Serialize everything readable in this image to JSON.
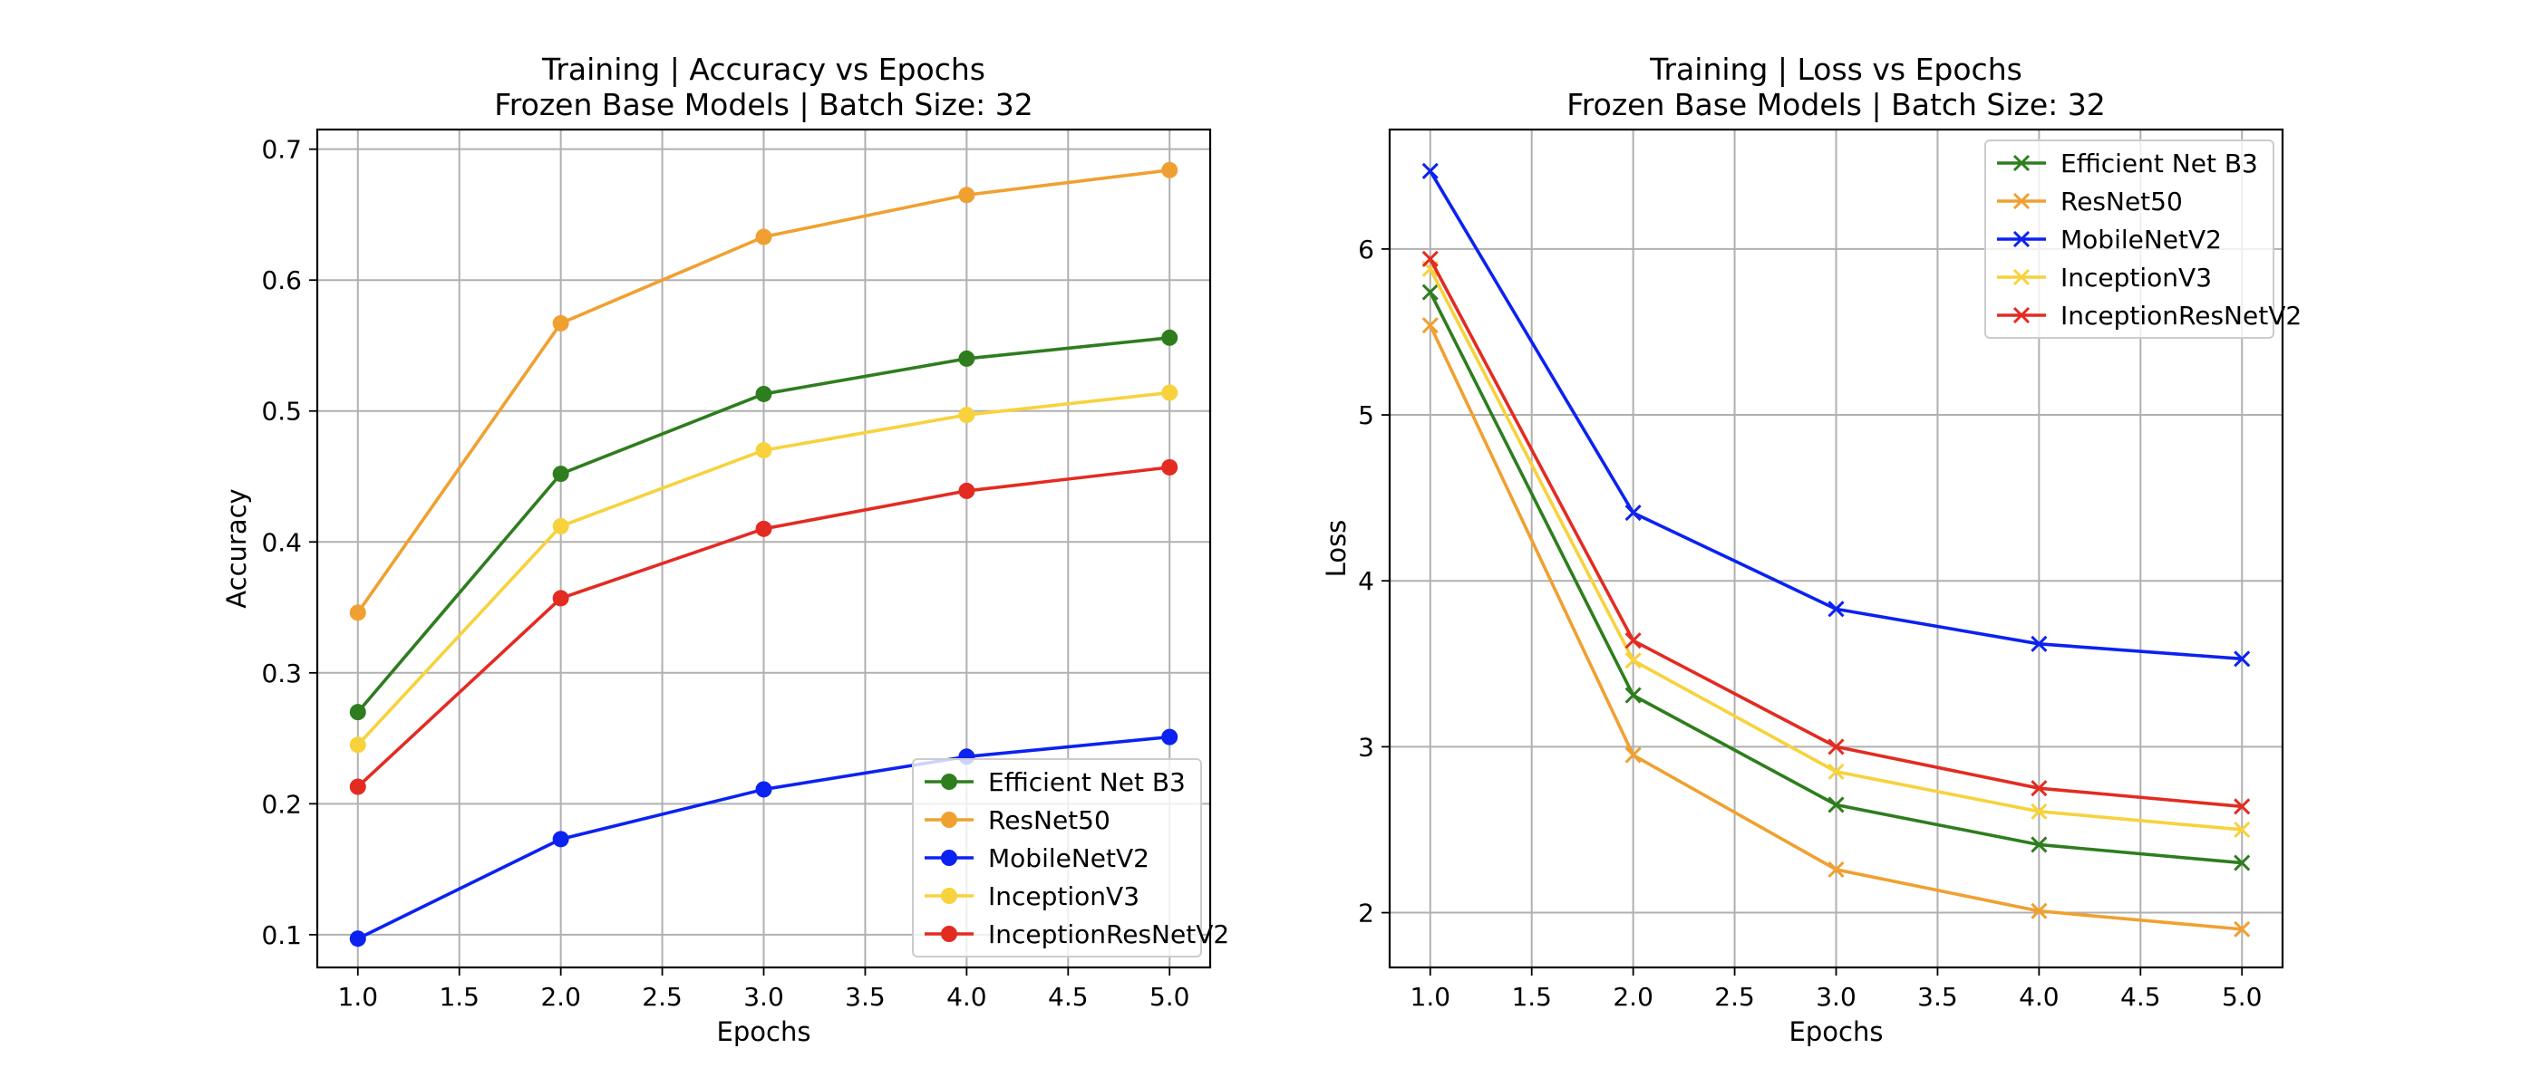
{
  "chart_data": [
    {
      "type": "line",
      "title": "Training | Accuracy vs Epochs",
      "subtitle": "Frozen Base Models | Batch Size: 32",
      "xlabel": "Epochs",
      "ylabel": "Accuracy",
      "xlim": [
        0.8,
        5.2
      ],
      "ylim": [
        0.075,
        0.715
      ],
      "xticks": [
        "1.0",
        "1.5",
        "2.0",
        "2.5",
        "3.0",
        "3.5",
        "4.0",
        "4.5",
        "5.0"
      ],
      "yticks": [
        "0.1",
        "0.2",
        "0.3",
        "0.4",
        "0.5",
        "0.6",
        "0.7"
      ],
      "grid": true,
      "marker": "circle",
      "legend_position": "lower right",
      "x": [
        1,
        2,
        3,
        4,
        5
      ],
      "series": [
        {
          "name": "Efficient Net B3",
          "color": "#2e7d1e",
          "values": [
            0.27,
            0.452,
            0.513,
            0.54,
            0.556
          ]
        },
        {
          "name": "ResNet50",
          "color": "#f0a030",
          "values": [
            0.346,
            0.567,
            0.633,
            0.665,
            0.684
          ]
        },
        {
          "name": "MobileNetV2",
          "color": "#0b22f0",
          "values": [
            0.097,
            0.173,
            0.211,
            0.236,
            0.251
          ]
        },
        {
          "name": "InceptionV3",
          "color": "#f7d23c",
          "values": [
            0.245,
            0.412,
            0.47,
            0.497,
            0.514
          ]
        },
        {
          "name": "InceptionResNetV2",
          "color": "#e32b22",
          "values": [
            0.213,
            0.357,
            0.41,
            0.439,
            0.457
          ]
        }
      ]
    },
    {
      "type": "line",
      "title": "Training | Loss vs Epochs",
      "subtitle": "Frozen Base Models | Batch Size: 32",
      "xlabel": "Epochs",
      "ylabel": "Loss",
      "xlim": [
        0.8,
        5.2
      ],
      "ylim": [
        1.67,
        6.72
      ],
      "xticks": [
        "1.0",
        "1.5",
        "2.0",
        "2.5",
        "3.0",
        "3.5",
        "4.0",
        "4.5",
        "5.0"
      ],
      "yticks": [
        "2",
        "3",
        "4",
        "5",
        "6"
      ],
      "grid": true,
      "marker": "x",
      "legend_position": "upper right",
      "x": [
        1,
        2,
        3,
        4,
        5
      ],
      "series": [
        {
          "name": "Efficient Net B3",
          "color": "#2e7d1e",
          "values": [
            5.74,
            3.31,
            2.65,
            2.41,
            2.3
          ]
        },
        {
          "name": "ResNet50",
          "color": "#f0a030",
          "values": [
            5.54,
            2.95,
            2.26,
            2.01,
            1.9
          ]
        },
        {
          "name": "MobileNetV2",
          "color": "#0b22f0",
          "values": [
            6.47,
            4.41,
            3.83,
            3.62,
            3.53
          ]
        },
        {
          "name": "InceptionV3",
          "color": "#f7d23c",
          "values": [
            5.88,
            3.52,
            2.85,
            2.61,
            2.5
          ]
        },
        {
          "name": "InceptionResNetV2",
          "color": "#e32b22",
          "values": [
            5.94,
            3.64,
            3.0,
            2.75,
            2.64
          ]
        }
      ]
    }
  ]
}
